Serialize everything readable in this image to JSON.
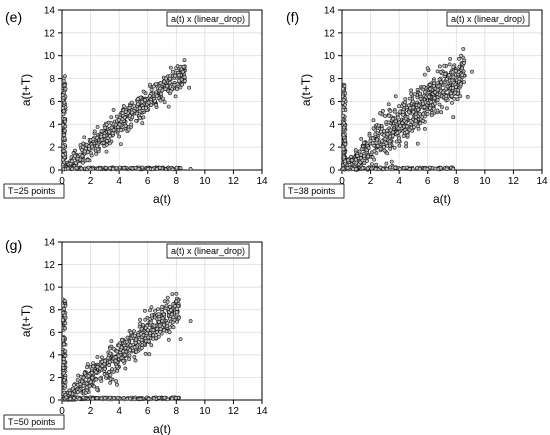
{
  "chart_data": [
    {
      "type": "scatter",
      "panel_label": "(e)",
      "legend": "a(t) x (linear_drop)",
      "caption": "T=25 points",
      "xlabel": "a(t)",
      "ylabel": "a(t+T)",
      "xlim": [
        0,
        14
      ],
      "ylim": [
        0,
        14
      ],
      "xticks": [
        0,
        2,
        4,
        6,
        8,
        10,
        12,
        14
      ],
      "yticks": [
        0,
        2,
        4,
        6,
        8,
        10,
        12,
        14
      ],
      "grid": true,
      "cluster": {
        "diag_min": 0.3,
        "diag_max": 8.6,
        "spread": 0.55,
        "n_diag": 520,
        "n_vert": 110,
        "n_horiz": 150,
        "vert_max": 8.2,
        "horiz_max": 8.4,
        "extra_points": [
          [
            9.0,
            0.1
          ],
          [
            8.6,
            7.8
          ],
          [
            8.9,
            7.2
          ]
        ]
      }
    },
    {
      "type": "scatter",
      "panel_label": "(f)",
      "legend": "a(t) x (linear_drop)",
      "caption": "T=38 points",
      "xlabel": "a(t)",
      "ylabel": "a(t+T)",
      "xlim": [
        0,
        14
      ],
      "ylim": [
        0,
        14
      ],
      "xticks": [
        0,
        2,
        4,
        6,
        8,
        10,
        12,
        14
      ],
      "yticks": [
        0,
        2,
        4,
        6,
        8,
        10,
        12,
        14
      ],
      "grid": true,
      "cluster": {
        "diag_min": 0.3,
        "diag_max": 8.6,
        "spread": 1.0,
        "n_diag": 700,
        "n_vert": 120,
        "n_horiz": 120,
        "vert_max": 7.5,
        "horiz_max": 8.0,
        "extra_points": [
          [
            9.1,
            8.6
          ],
          [
            8.8,
            6.4
          ],
          [
            6.0,
            8.9
          ]
        ]
      }
    },
    {
      "type": "scatter",
      "panel_label": "(g)",
      "legend": "a(t) x (linear_drop)",
      "caption": "T=50 points",
      "xlabel": "a(t)",
      "ylabel": "a(t+T)",
      "xlim": [
        0,
        14
      ],
      "ylim": [
        0,
        14
      ],
      "xticks": [
        0,
        2,
        4,
        6,
        8,
        10,
        12,
        14
      ],
      "yticks": [
        0,
        2,
        4,
        6,
        8,
        10,
        12,
        14
      ],
      "grid": true,
      "cluster": {
        "diag_min": 0.3,
        "diag_max": 8.2,
        "spread": 0.75,
        "n_diag": 560,
        "n_vert": 110,
        "n_horiz": 140,
        "vert_max": 9.0,
        "horiz_max": 8.2,
        "extra_points": [
          [
            9.0,
            7.0
          ],
          [
            8.3,
            5.4
          ],
          [
            5.8,
            7.9
          ]
        ]
      }
    }
  ],
  "colors": {
    "marker_stroke": "#1a1a1a",
    "marker_fill": "#bdbdbd",
    "grid": "#d9d9d9",
    "axis": "#000000"
  }
}
